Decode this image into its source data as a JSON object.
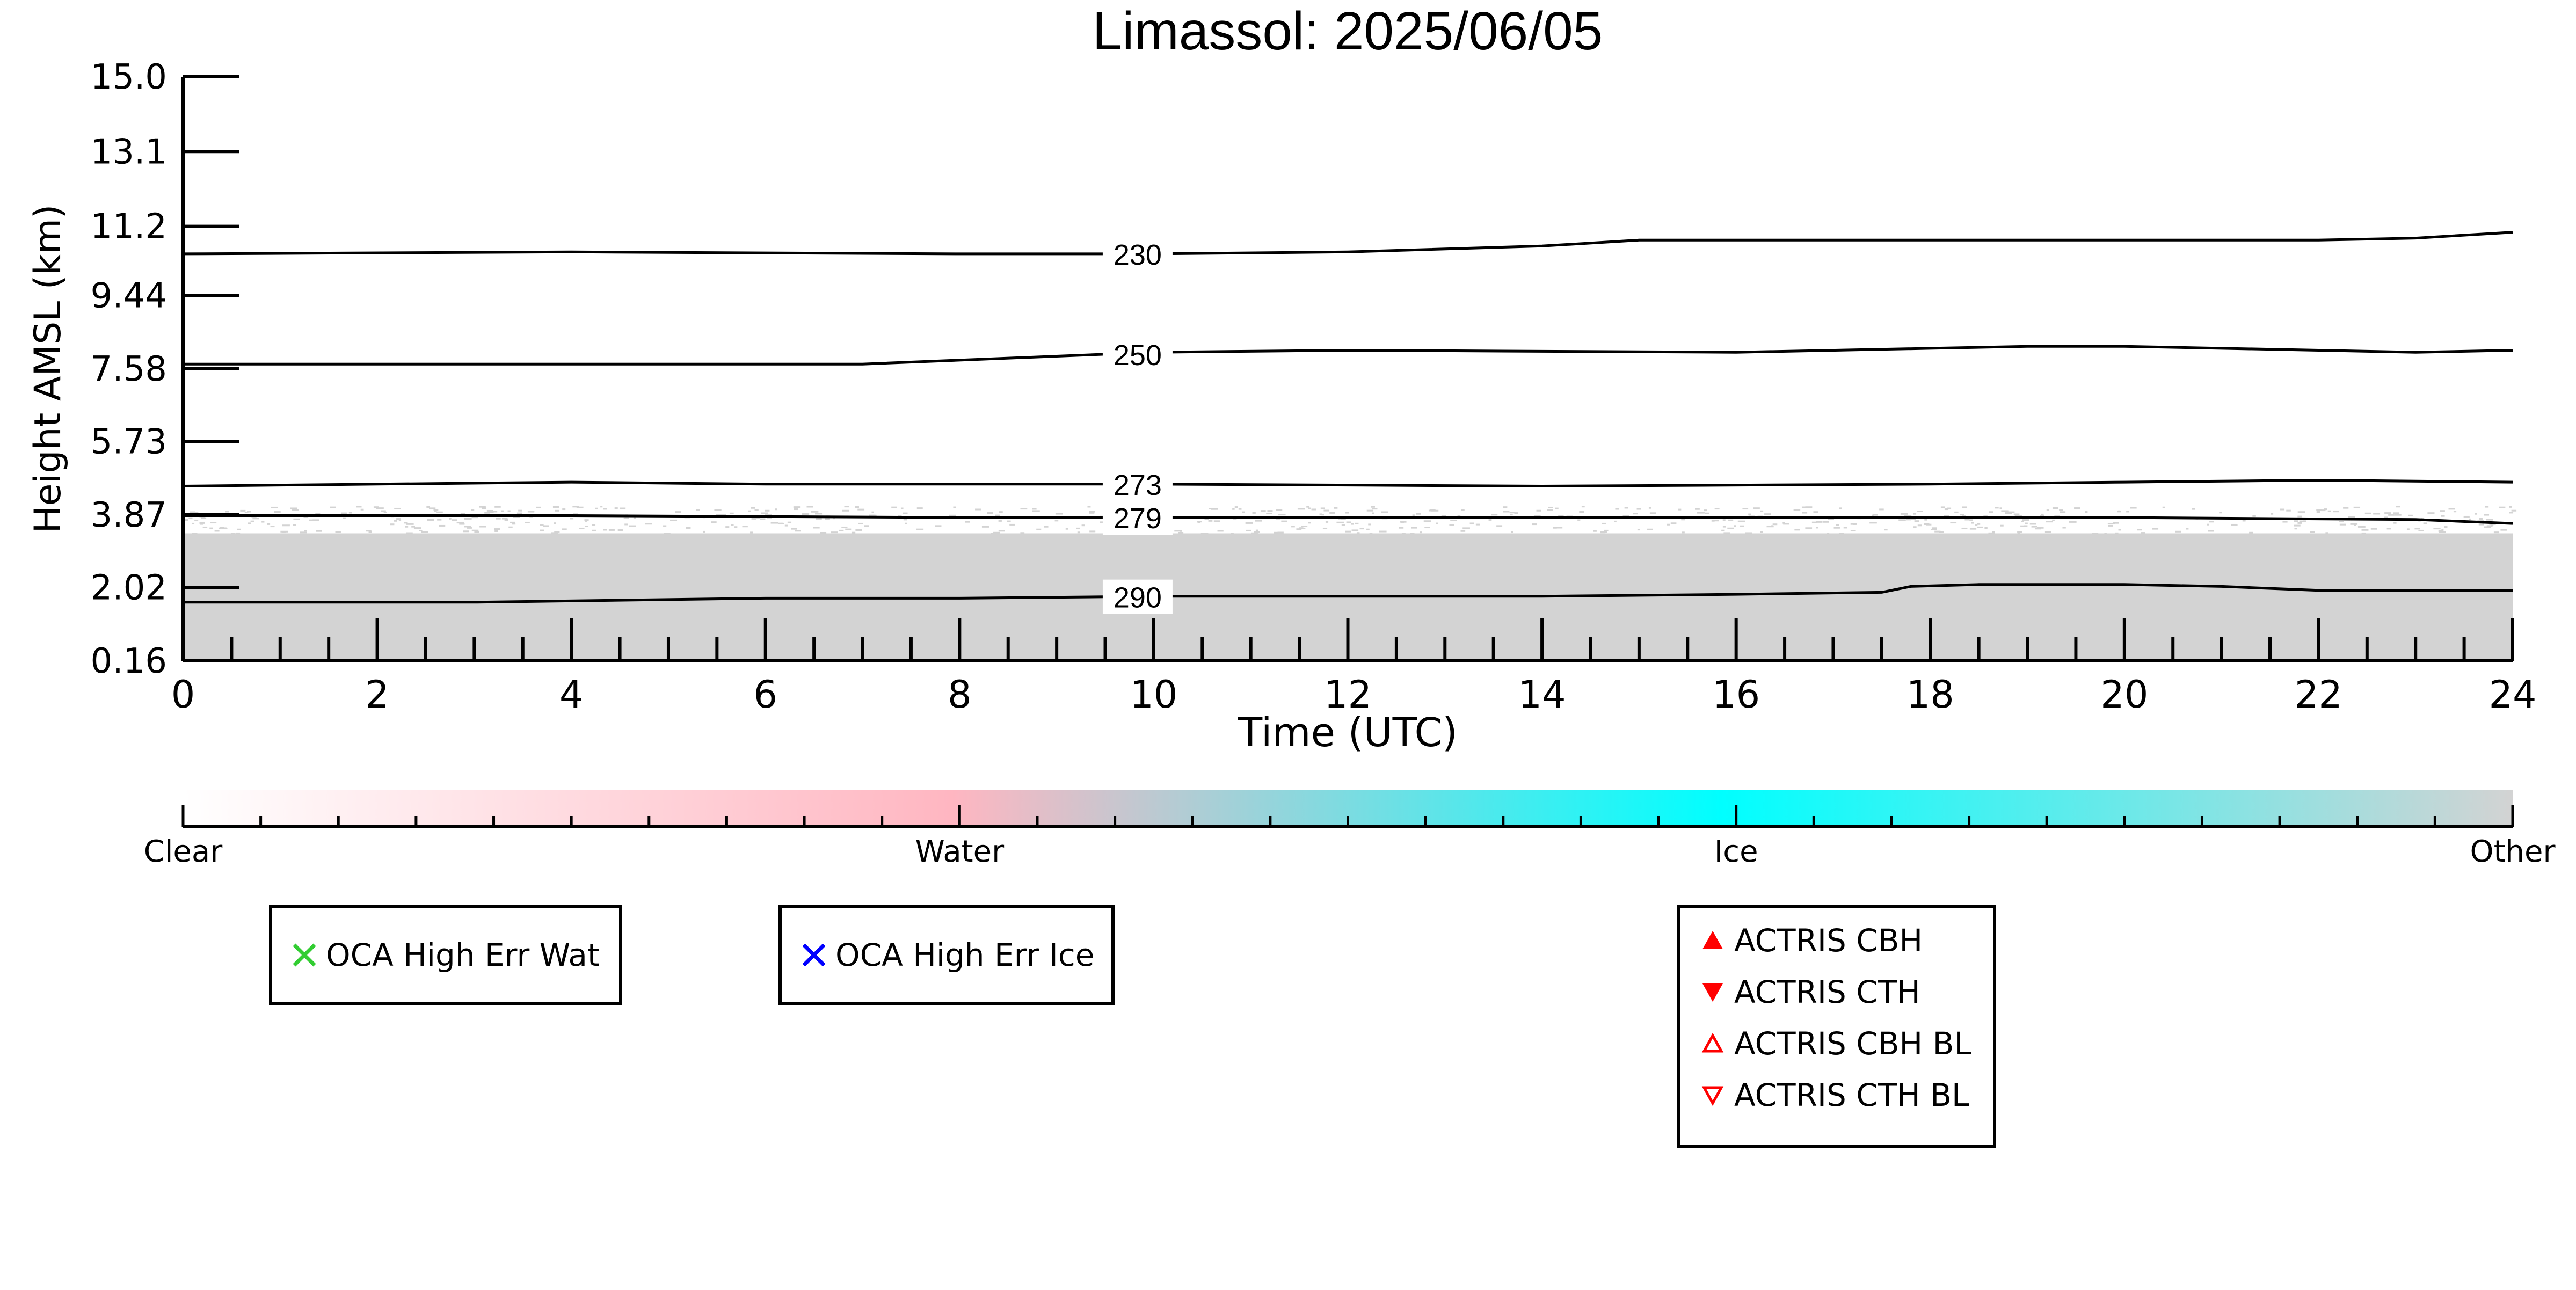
{
  "chart_data": {
    "type": "heatmap",
    "title": "Limassol: 2025/06/05",
    "xlabel": "Time (UTC)",
    "ylabel": "Height AMSL (km)",
    "xlim": [
      0,
      24
    ],
    "ylim": [
      0.16,
      15.0
    ],
    "x_ticks": [
      "0",
      "2",
      "4",
      "6",
      "8",
      "10",
      "12",
      "14",
      "16",
      "18",
      "20",
      "22",
      "24"
    ],
    "y_ticks": [
      "15.0",
      "13.1",
      "11.2",
      "9.44",
      "7.58",
      "5.73",
      "3.87",
      "2.02",
      "0.16"
    ],
    "y_tick_values": [
      15.0,
      13.1,
      11.2,
      9.44,
      7.58,
      5.73,
      3.87,
      2.02,
      0.16
    ],
    "classification_field": {
      "class": "Other",
      "color": "#d3d3d3",
      "solid_top_km": 3.4,
      "scattered_top_km": 4.1,
      "x_range": [
        0,
        24
      ]
    },
    "contours": [
      {
        "label": "230",
        "x": [
          0,
          4,
          8,
          10,
          12,
          14,
          15,
          18,
          20,
          22,
          23,
          24
        ],
        "y": [
          10.5,
          10.55,
          10.5,
          10.5,
          10.55,
          10.7,
          10.85,
          10.85,
          10.85,
          10.85,
          10.9,
          11.05
        ]
      },
      {
        "label": "250",
        "x": [
          0,
          4,
          7,
          9,
          10,
          12,
          16,
          18,
          19,
          20,
          22,
          23,
          24
        ],
        "y": [
          7.7,
          7.7,
          7.7,
          7.9,
          8.0,
          8.05,
          8.0,
          8.1,
          8.15,
          8.15,
          8.05,
          8.0,
          8.05
        ]
      },
      {
        "label": "273",
        "x": [
          0,
          2,
          4,
          6,
          10,
          14,
          18,
          20,
          22,
          24
        ],
        "y": [
          4.6,
          4.65,
          4.7,
          4.65,
          4.65,
          4.6,
          4.65,
          4.7,
          4.75,
          4.7
        ]
      },
      {
        "label": "279",
        "x": [
          0,
          4,
          8,
          12,
          16,
          20,
          23,
          24
        ],
        "y": [
          3.85,
          3.85,
          3.8,
          3.8,
          3.8,
          3.8,
          3.75,
          3.65
        ]
      },
      {
        "label": "290",
        "x": [
          0,
          3,
          6,
          8,
          10,
          12,
          14,
          16,
          17.5,
          17.8,
          18.5,
          20,
          21,
          22,
          24
        ],
        "y": [
          1.65,
          1.65,
          1.75,
          1.75,
          1.8,
          1.8,
          1.8,
          1.85,
          1.9,
          2.05,
          2.1,
          2.1,
          2.05,
          1.95,
          1.95
        ]
      }
    ],
    "colorbar": {
      "labels": [
        "Clear",
        "Water",
        "Ice",
        "Other"
      ],
      "colors": [
        "#ffffff",
        "#ffb6c1",
        "#00ffff",
        "#d3d3d3"
      ]
    },
    "legends": [
      {
        "items": [
          {
            "label": "OCA High Err Wat",
            "marker": "x-mark",
            "color": "#32cd32"
          }
        ]
      },
      {
        "items": [
          {
            "label": "OCA High Err Ice",
            "marker": "x-mark",
            "color": "#0000ff"
          }
        ]
      },
      {
        "items": [
          {
            "label": "ACTRIS CBH",
            "marker": "triangle-up-filled",
            "color": "#ff0000"
          },
          {
            "label": "ACTRIS CTH",
            "marker": "triangle-down-filled",
            "color": "#ff0000"
          },
          {
            "label": "ACTRIS CBH BL",
            "marker": "triangle-up-open",
            "color": "#ff0000"
          },
          {
            "label": "ACTRIS CTH BL",
            "marker": "triangle-down-open",
            "color": "#ff0000"
          }
        ]
      }
    ]
  }
}
